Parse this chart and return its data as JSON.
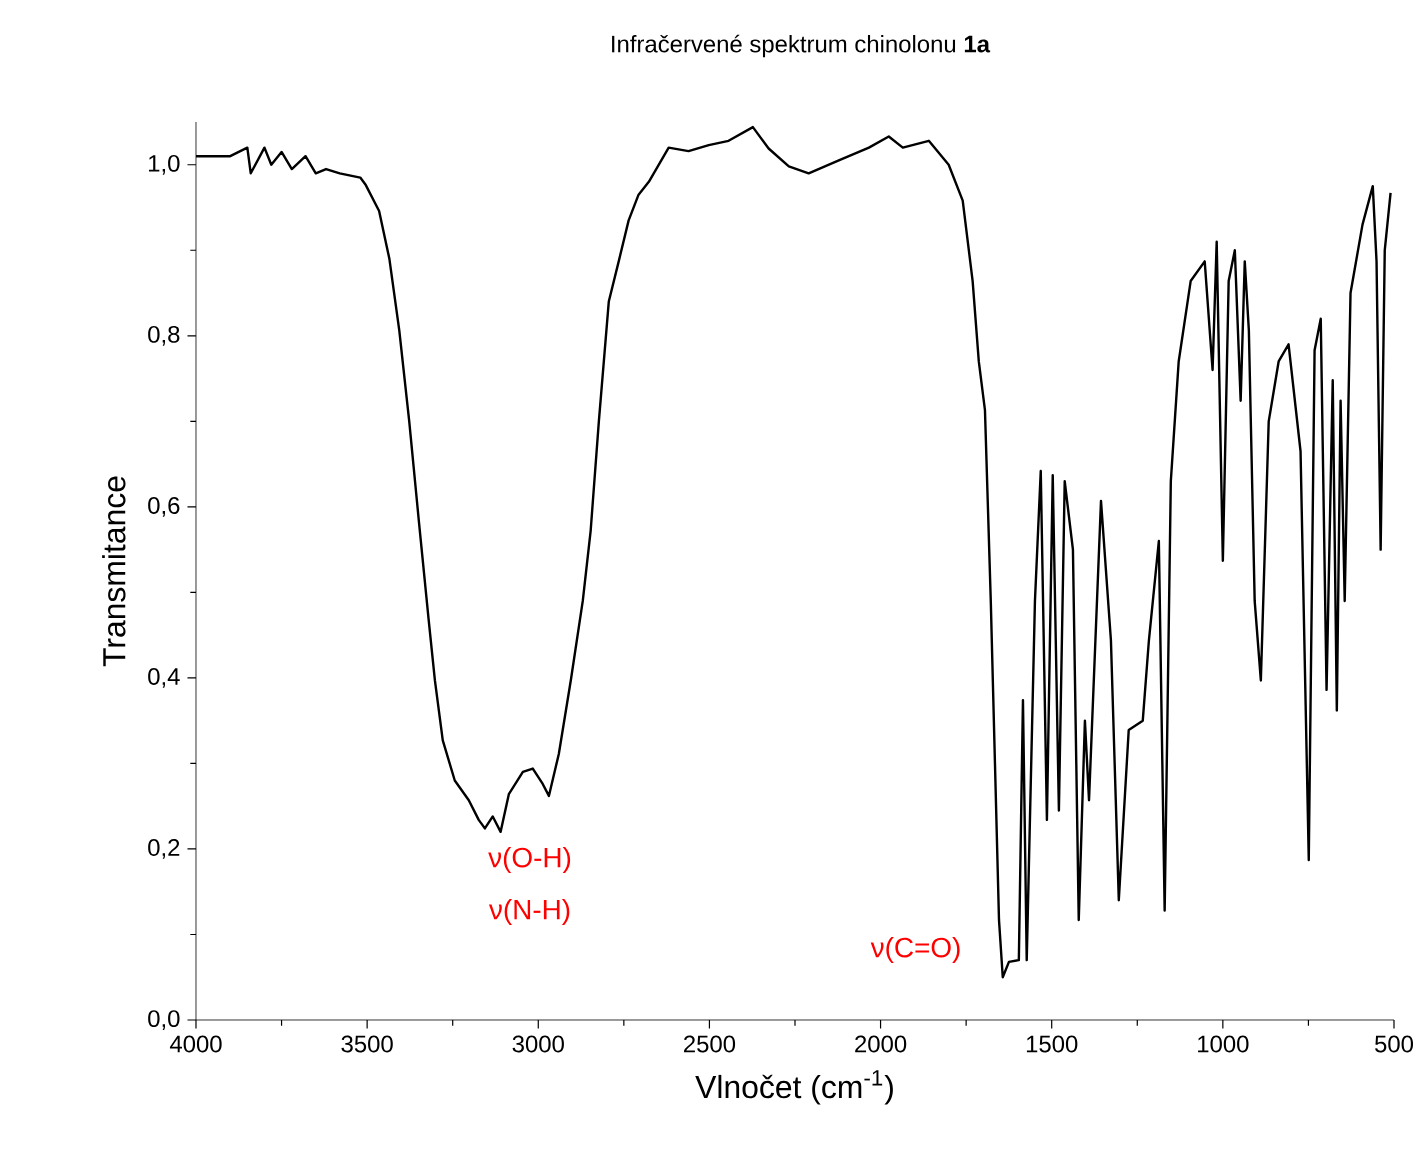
{
  "chart_data": {
    "type": "line",
    "title": "Infračervené spektrum chinolonu **1a**",
    "xlabel": "Vlnočet (cm$^{-1}$)",
    "ylabel": "Transmitance",
    "xlim": [
      4000,
      500
    ],
    "ylim": [
      0,
      1.05
    ],
    "xticks": [
      4000,
      3500,
      3000,
      2500,
      2000,
      1500,
      1000,
      500
    ],
    "yticks": [
      {
        "value": 0,
        "label": "0,0"
      },
      {
        "value": 0.2,
        "label": "0,2"
      },
      {
        "value": 0.4,
        "label": "0,4"
      },
      {
        "value": 0.6,
        "label": "0,6"
      },
      {
        "value": 0.8,
        "label": "0,8"
      },
      {
        "value": 1.0,
        "label": "1,0"
      }
    ],
    "grid": false,
    "marker": "none",
    "line_style": "solid",
    "series": [
      {
        "color": "#000000",
        "x": [
          4000,
          3900,
          3850,
          3840,
          3800,
          3780,
          3750,
          3720,
          3680,
          3650,
          3620,
          3580,
          3520,
          3505,
          3465,
          3435,
          3406,
          3377,
          3349,
          3320,
          3302,
          3279,
          3244,
          3203,
          3174,
          3156,
          3133,
          3110,
          3086,
          3045,
          3016,
          2987,
          2969,
          2940,
          2905,
          2870,
          2847,
          2823,
          2794,
          2765,
          2736,
          2707,
          2677,
          2619,
          2561,
          2502,
          2444,
          2373,
          2327,
          2268,
          2210,
          2122,
          2034,
          1976,
          1935,
          1859,
          1801,
          1760,
          1731,
          1713,
          1695,
          1678,
          1654,
          1643,
          1625,
          1596,
          1584,
          1573,
          1549,
          1532,
          1514,
          1497,
          1479,
          1462,
          1438,
          1421,
          1403,
          1391,
          1356,
          1327,
          1304,
          1275,
          1234,
          1216,
          1187,
          1170,
          1152,
          1129,
          1094,
          1053,
          1030,
          1018,
          1000,
          983,
          965,
          948,
          936,
          924,
          907,
          889,
          866,
          837,
          808,
          773,
          749,
          732,
          714,
          697,
          679,
          667,
          656,
          644,
          627,
          592,
          562,
          551,
          539,
          527,
          510
        ],
        "values": [
          1.01,
          1.01,
          1.02,
          0.99,
          1.02,
          1.0,
          1.015,
          0.995,
          1.01,
          0.99,
          0.995,
          0.99,
          0.985,
          0.977,
          0.946,
          0.89,
          0.806,
          0.7,
          0.584,
          0.467,
          0.397,
          0.327,
          0.28,
          0.257,
          0.234,
          0.224,
          0.238,
          0.22,
          0.264,
          0.29,
          0.294,
          0.276,
          0.262,
          0.311,
          0.397,
          0.49,
          0.572,
          0.7,
          0.84,
          0.887,
          0.935,
          0.965,
          0.98,
          1.02,
          1.016,
          1.023,
          1.028,
          1.044,
          1.019,
          0.998,
          0.99,
          1.005,
          1.02,
          1.033,
          1.02,
          1.028,
          1.0,
          0.958,
          0.864,
          0.77,
          0.713,
          0.49,
          0.117,
          0.05,
          0.068,
          0.07,
          0.374,
          0.07,
          0.49,
          0.642,
          0.234,
          0.637,
          0.245,
          0.63,
          0.55,
          0.117,
          0.35,
          0.257,
          0.607,
          0.444,
          0.14,
          0.339,
          0.35,
          0.444,
          0.56,
          0.128,
          0.63,
          0.77,
          0.864,
          0.887,
          0.76,
          0.91,
          0.537,
          0.864,
          0.9,
          0.724,
          0.887,
          0.806,
          0.49,
          0.397,
          0.7,
          0.77,
          0.79,
          0.665,
          0.187,
          0.783,
          0.82,
          0.386,
          0.748,
          0.362,
          0.724,
          0.49,
          0.85,
          0.93,
          0.975,
          0.887,
          0.55,
          0.9,
          0.967
        ]
      }
    ],
    "annotations": [
      "ν(O-H)",
      "ν(N-H)",
      "ν(C=O)"
    ]
  }
}
